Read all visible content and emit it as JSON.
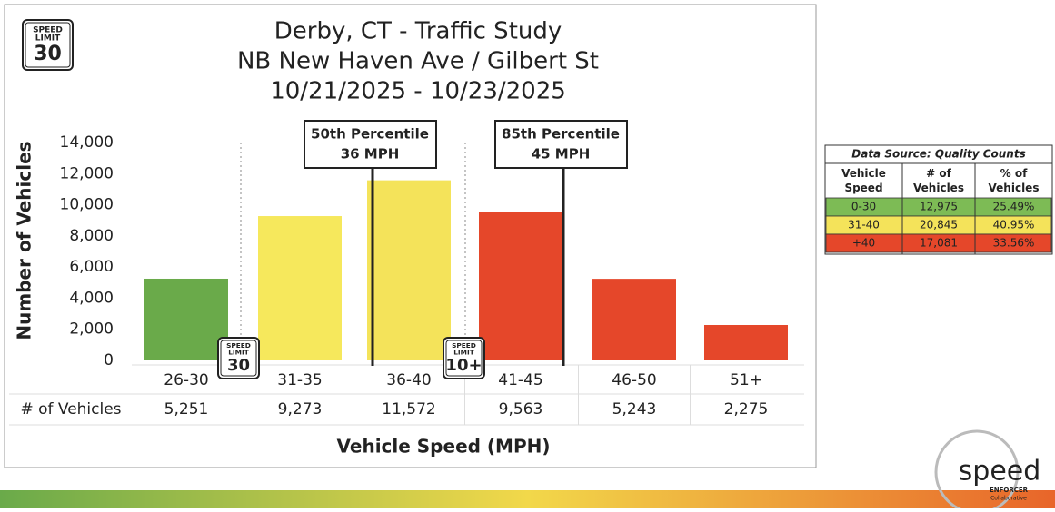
{
  "chart_data": {
    "type": "bar",
    "title": "Derby, CT - Traffic Study",
    "subtitle": "NB New Haven Ave / Gilbert St",
    "date_range": "10/21/2025 - 10/23/2025",
    "y_label": "Number of Vehicles",
    "x_label": "Vehicle Speed (MPH)",
    "table_row_label": "# of Vehicles",
    "categories": [
      "26-30",
      "31-35",
      "36-40",
      "41-45",
      "46-50",
      "51+"
    ],
    "values": [
      5251,
      9273,
      11572,
      9563,
      5243,
      2275
    ],
    "value_labels": [
      "5,251",
      "9,273",
      "11,572",
      "9,563",
      "5,243",
      "2,275"
    ],
    "colors": [
      "#6aaa4a",
      "#f6e85c",
      "#f4e35a",
      "#e5472a",
      "#e5472a",
      "#e5472a"
    ],
    "ylim": [
      0,
      14000
    ],
    "yticks": [
      0,
      {
        "value": 2000,
        "label": "2,000"
      },
      {
        "value": 4000,
        "label": "4,000"
      },
      {
        "value": 6000,
        "label": "6,000"
      },
      {
        "value": 8000,
        "label": "8,000"
      },
      {
        "value": 10000,
        "label": "10,000"
      },
      {
        "value": 12000,
        "label": "12,000"
      },
      {
        "value": 14000,
        "label": "14,000"
      }
    ],
    "grid": false,
    "annotations": [
      {
        "label": "50th Percentile",
        "text": "36 MPH"
      },
      {
        "label": "85th Percentile",
        "text": "45 MPH"
      }
    ],
    "signs": [
      {
        "top": "SPEED",
        "middle": "LIMIT",
        "value": 30
      },
      {
        "top": "SPEED",
        "middle": "LIMIT",
        "value": 30
      },
      {
        "top": "SPEED",
        "middle": "LIMIT",
        "value": "10+"
      }
    ]
  },
  "side_table": {
    "title": "Data Source: Quality Counts",
    "header": [
      "Vehicle Speed",
      "# of Vehicles",
      "% of Vehicles"
    ],
    "rows": [
      [
        "0-30",
        "12,975",
        "25.49%"
      ],
      [
        "31-40",
        "20,845",
        "40.95%"
      ],
      [
        "+40",
        "17,081",
        "33.56%"
      ]
    ],
    "row_colors": [
      "#7dbb55",
      "#f4e35a",
      "#e5472a"
    ]
  },
  "logo": {
    "name": "speed",
    "line1": "ENFORCER",
    "line2": "Collaborative"
  }
}
